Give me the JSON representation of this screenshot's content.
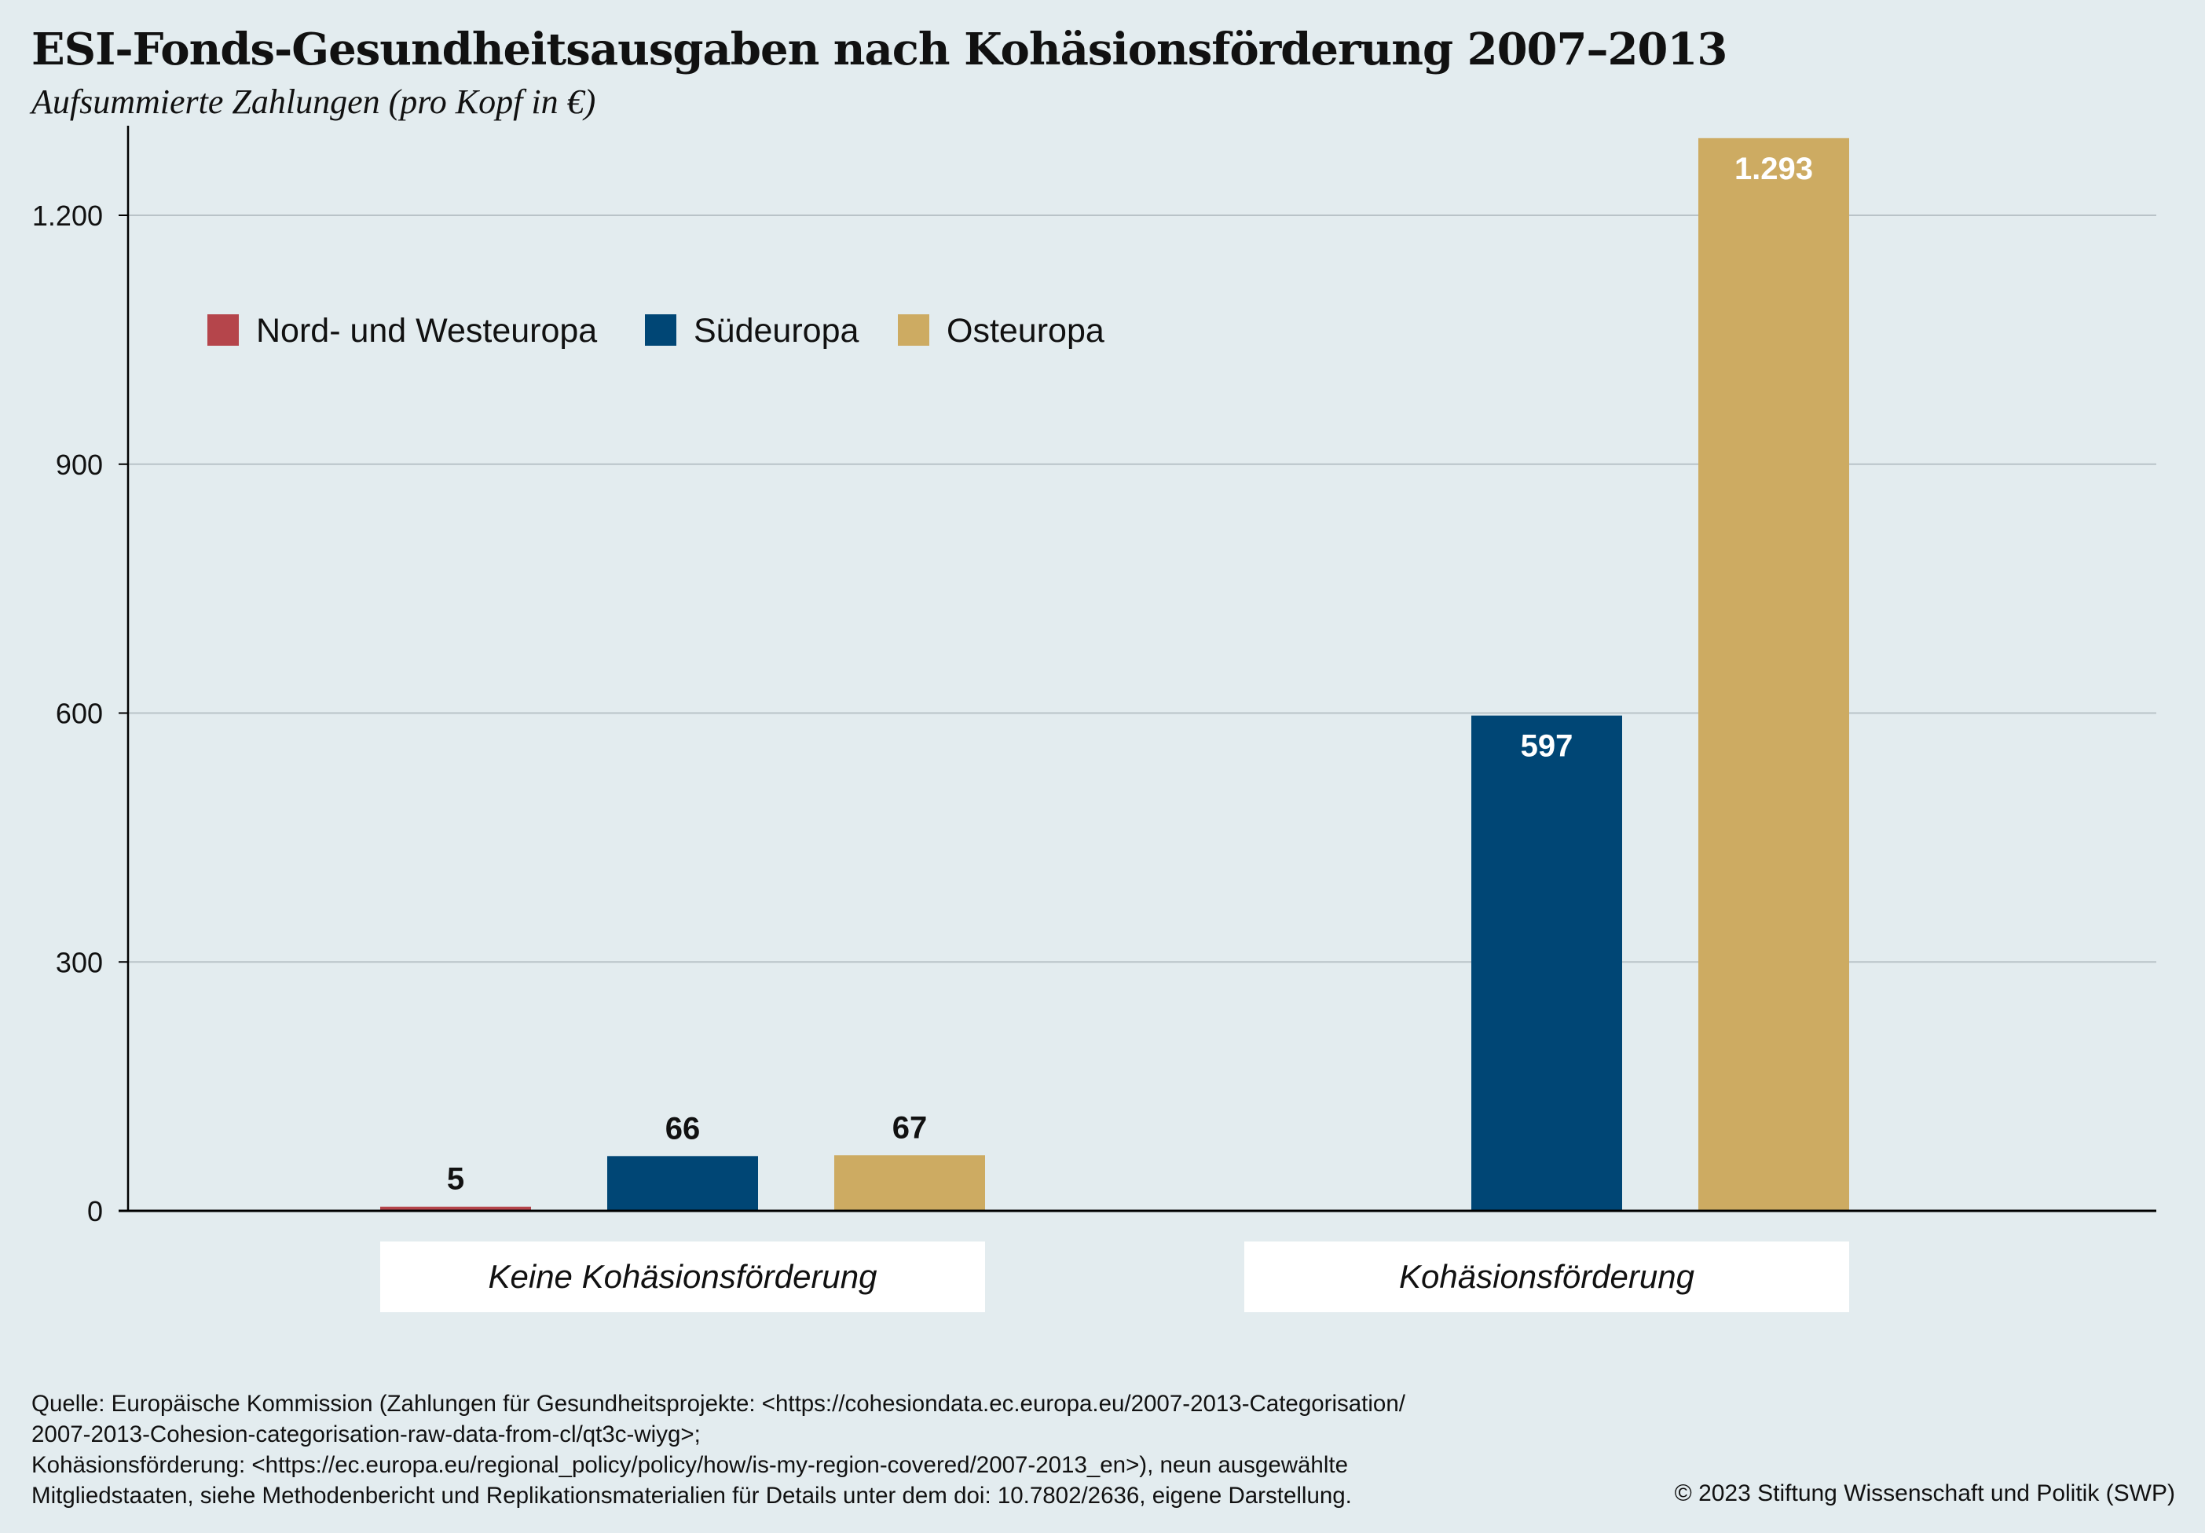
{
  "title": "ESI-Fonds-Gesundheitsausgaben nach Kohäsionsförderung 2007–2013",
  "subtitle": "Aufsummierte Zahlungen (pro Kopf in €)",
  "source_lines": [
    "Quelle: Europäische Kommission (Zahlungen für Gesundheitsprojekte: <https://cohesiondata.ec.europa.eu/2007-2013-Categorisation/",
    "2007-2013-Cohesion-categorisation-raw-data-from-cl/qt3c-wiyg>;",
    "Kohäsionsförderung: <https://ec.europa.eu/regional_policy/policy/how/is-my-region-covered/2007-2013_en>), neun ausgewählte",
    "Mitgliedstaaten, siehe Methodenbericht und Replikationsmaterialien für Details unter dem doi: 10.7802/2636, eigene Darstellung."
  ],
  "copyright": "© 2023 Stiftung Wissenschaft und Politik (SWP)",
  "colors": {
    "background": "#e3ecef",
    "gridline": "#b9c3c8",
    "axis": "#000000"
  },
  "chart_data": {
    "type": "bar",
    "title": "ESI-Fonds-Gesundheitsausgaben nach Kohäsionsförderung 2007–2013",
    "subtitle": "Aufsummierte Zahlungen (pro Kopf in €)",
    "categories": [
      "Keine Kohäsionsförderung",
      "Kohäsionsförderung"
    ],
    "series": [
      {
        "name": "Nord- und Westeuropa",
        "color": "#b5454b",
        "values": [
          5,
          null
        ],
        "labels": [
          "5",
          ""
        ]
      },
      {
        "name": "Südeuropa",
        "color": "#004675",
        "values": [
          66,
          597
        ],
        "labels": [
          "66",
          "597"
        ]
      },
      {
        "name": "Osteuropa",
        "color": "#cdab62",
        "values": [
          67,
          1293
        ],
        "labels": [
          "67",
          "1.293"
        ]
      }
    ],
    "ylim": [
      0,
      1293
    ],
    "yticks": [
      0,
      300,
      600,
      900,
      1200
    ],
    "ytick_labels": [
      "0",
      "300",
      "600",
      "900",
      "1.200"
    ],
    "grid": true,
    "legend_position": "top-left",
    "xlabel": "",
    "ylabel": ""
  }
}
